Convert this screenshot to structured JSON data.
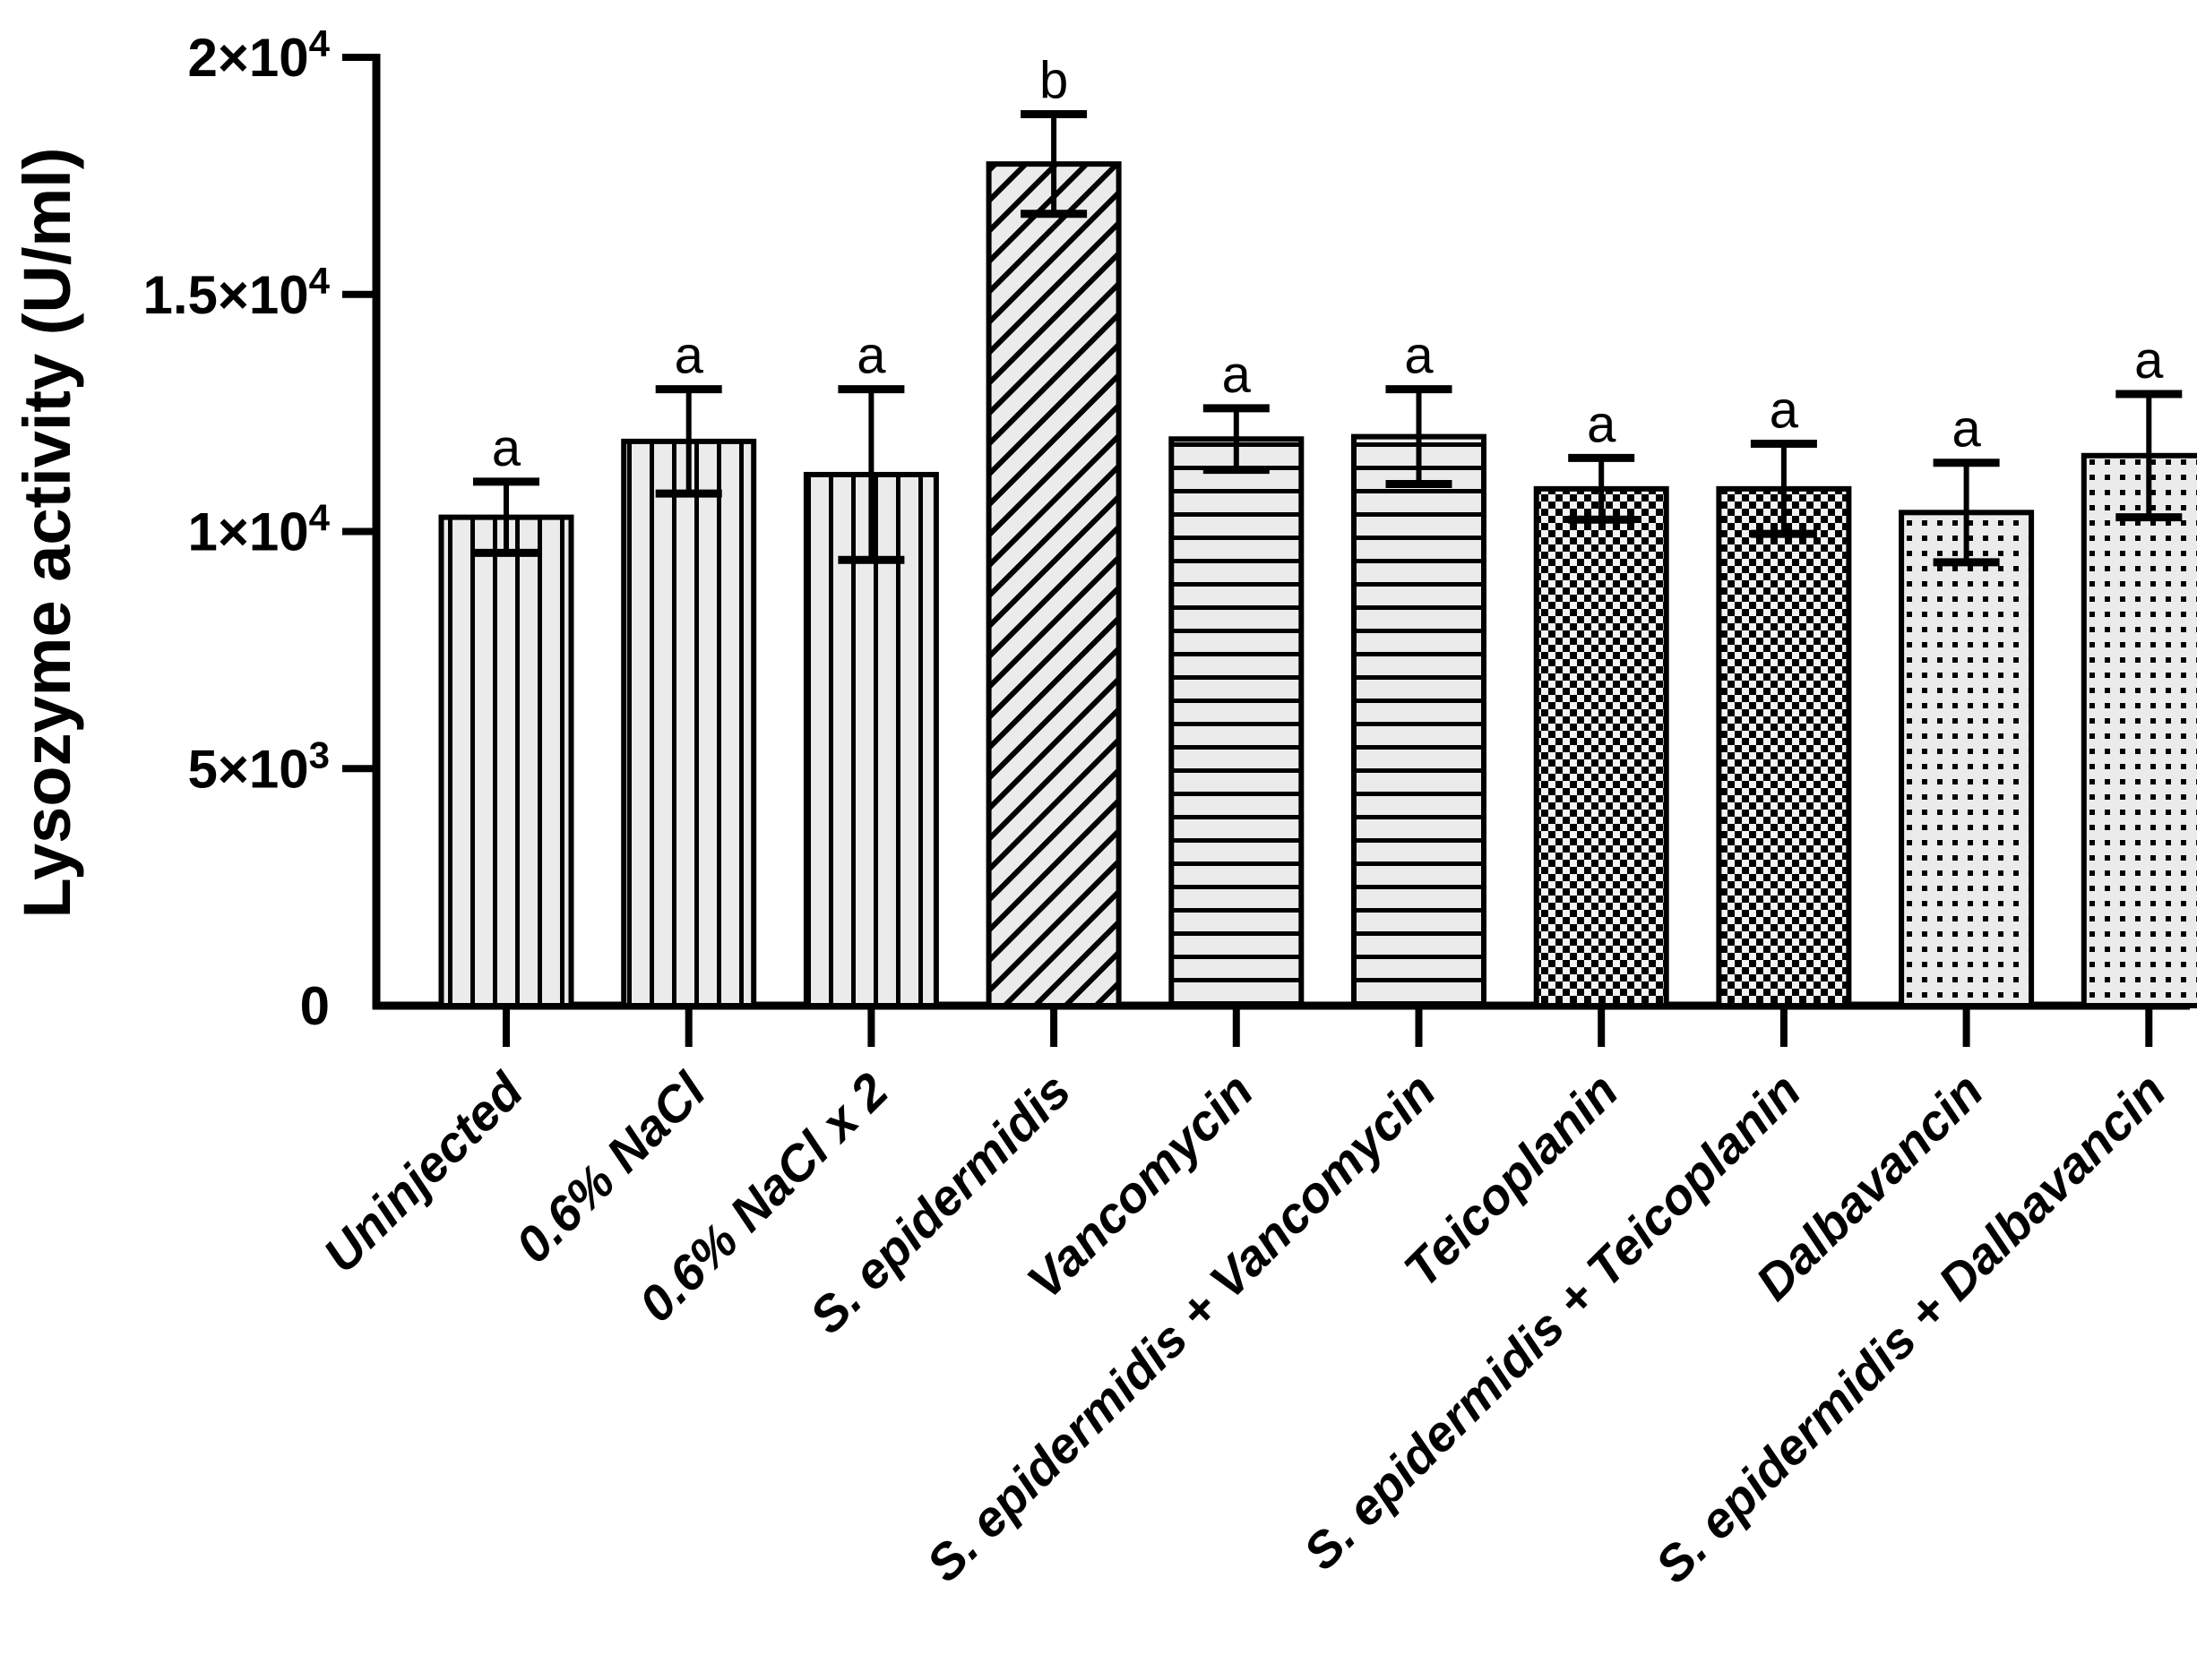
{
  "figure": {
    "background": "#ffffff",
    "ink": "#000000",
    "bar_fill": "#ebebeb",
    "checker_bg": "#f3f3f3"
  },
  "chart_data": {
    "type": "bar",
    "title": "",
    "xlabel": "",
    "ylabel": "Lysozyme activity (U/ml)",
    "ylim": [
      0,
      20000
    ],
    "grid": false,
    "legend": "none",
    "yticks": [
      {
        "value": 0,
        "text": "0",
        "sup": ""
      },
      {
        "value": 5000,
        "text": "5×10",
        "sup": "3"
      },
      {
        "value": 10000,
        "text": "1×10",
        "sup": "4"
      },
      {
        "value": 15000,
        "text": "1.5×10",
        "sup": "4"
      },
      {
        "value": 20000,
        "text": "2×10",
        "sup": "4"
      }
    ],
    "categories": [
      "Uninjected",
      "0.6% NaCl",
      "0.6% NaCl x 2",
      "S. epidermidis",
      "Vancomycin",
      "S. epidermidis + Vancomycin",
      "Teicoplanin",
      "S. epidermidis + Teicoplanin",
      "Dalbavancin",
      "S. epidermidis + Dalbavancin"
    ],
    "values": [
      10300,
      11900,
      11200,
      17750,
      11950,
      12000,
      10900,
      10900,
      10400,
      11600
    ],
    "errors": [
      750,
      1100,
      1800,
      1050,
      650,
      1000,
      650,
      950,
      1050,
      1300
    ],
    "sig_letters": [
      "a",
      "a",
      "a",
      "b",
      "a",
      "a",
      "a",
      "a",
      "a",
      "a"
    ],
    "patterns": [
      "vertical-stripes",
      "vertical-stripes",
      "vertical-stripes",
      "diagonal-stripes",
      "horizontal-stripes",
      "horizontal-stripes",
      "checkerboard",
      "checkerboard",
      "dots",
      "dots"
    ]
  }
}
